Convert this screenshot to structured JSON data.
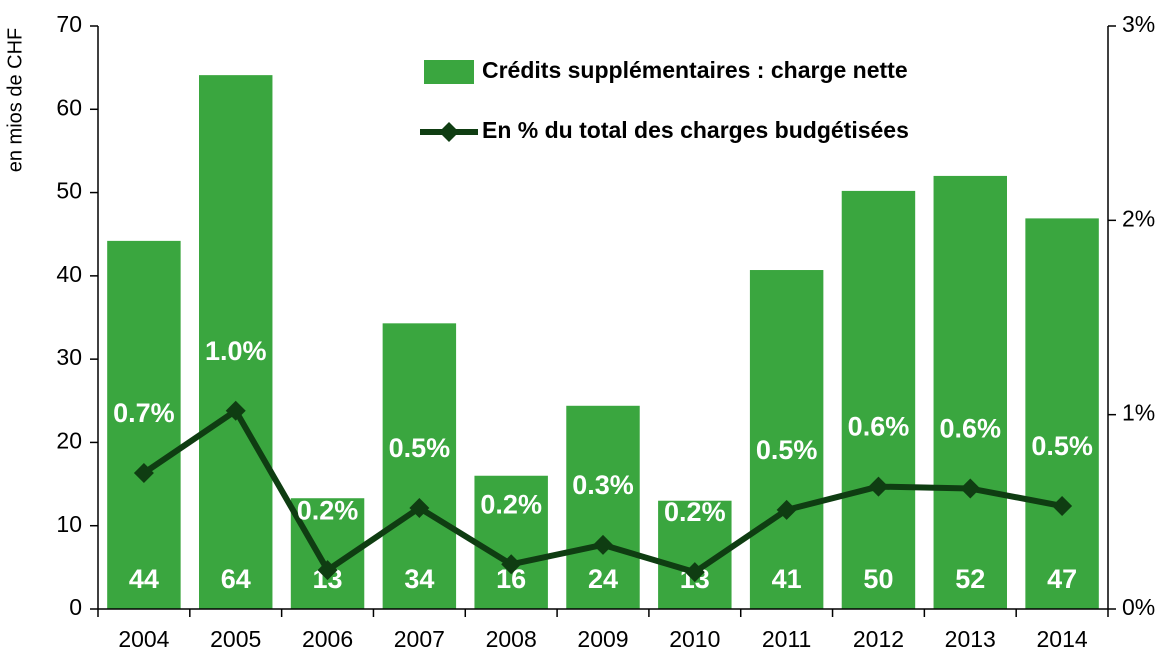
{
  "chart_data": {
    "type": "bar",
    "y_label": "en mios de CHF",
    "categories": [
      "2004",
      "2005",
      "2006",
      "2007",
      "2008",
      "2009",
      "2010",
      "2011",
      "2012",
      "2013",
      "2014"
    ],
    "series": [
      {
        "name": "Crédits supplémentaires : charge nette",
        "type": "bar",
        "color": "#3aa63f",
        "values": [
          44.2,
          64.1,
          13.3,
          34.3,
          16.0,
          24.4,
          13.0,
          40.7,
          50.2,
          52.0,
          46.9
        ],
        "value_labels": [
          "44",
          "64",
          "13",
          "34",
          "16",
          "24",
          "13",
          "41",
          "50",
          "52",
          "47"
        ]
      },
      {
        "name": "En % du total des charges budgétisées",
        "type": "line",
        "axis": "y2",
        "color": "#0f3d12",
        "values": [
          0.7,
          1.02,
          0.2,
          0.52,
          0.23,
          0.33,
          0.19,
          0.51,
          0.63,
          0.62,
          0.53
        ],
        "value_labels": [
          "0.7%",
          "1.0%",
          "0.2%",
          "0.5%",
          "0.2%",
          "0.3%",
          "0.2%",
          "0.5%",
          "0.6%",
          "0.6%",
          "0.5%"
        ]
      }
    ],
    "ylim": [
      0,
      70
    ],
    "yticks": [
      0,
      10,
      20,
      30,
      40,
      50,
      60,
      70
    ],
    "y2lim": [
      0,
      3
    ],
    "y2ticks": [
      {
        "value": 0,
        "label": "0%"
      },
      {
        "value": 1,
        "label": "1%"
      },
      {
        "value": 2,
        "label": "2%"
      },
      {
        "value": 3,
        "label": "3%"
      }
    ],
    "grid": false
  }
}
